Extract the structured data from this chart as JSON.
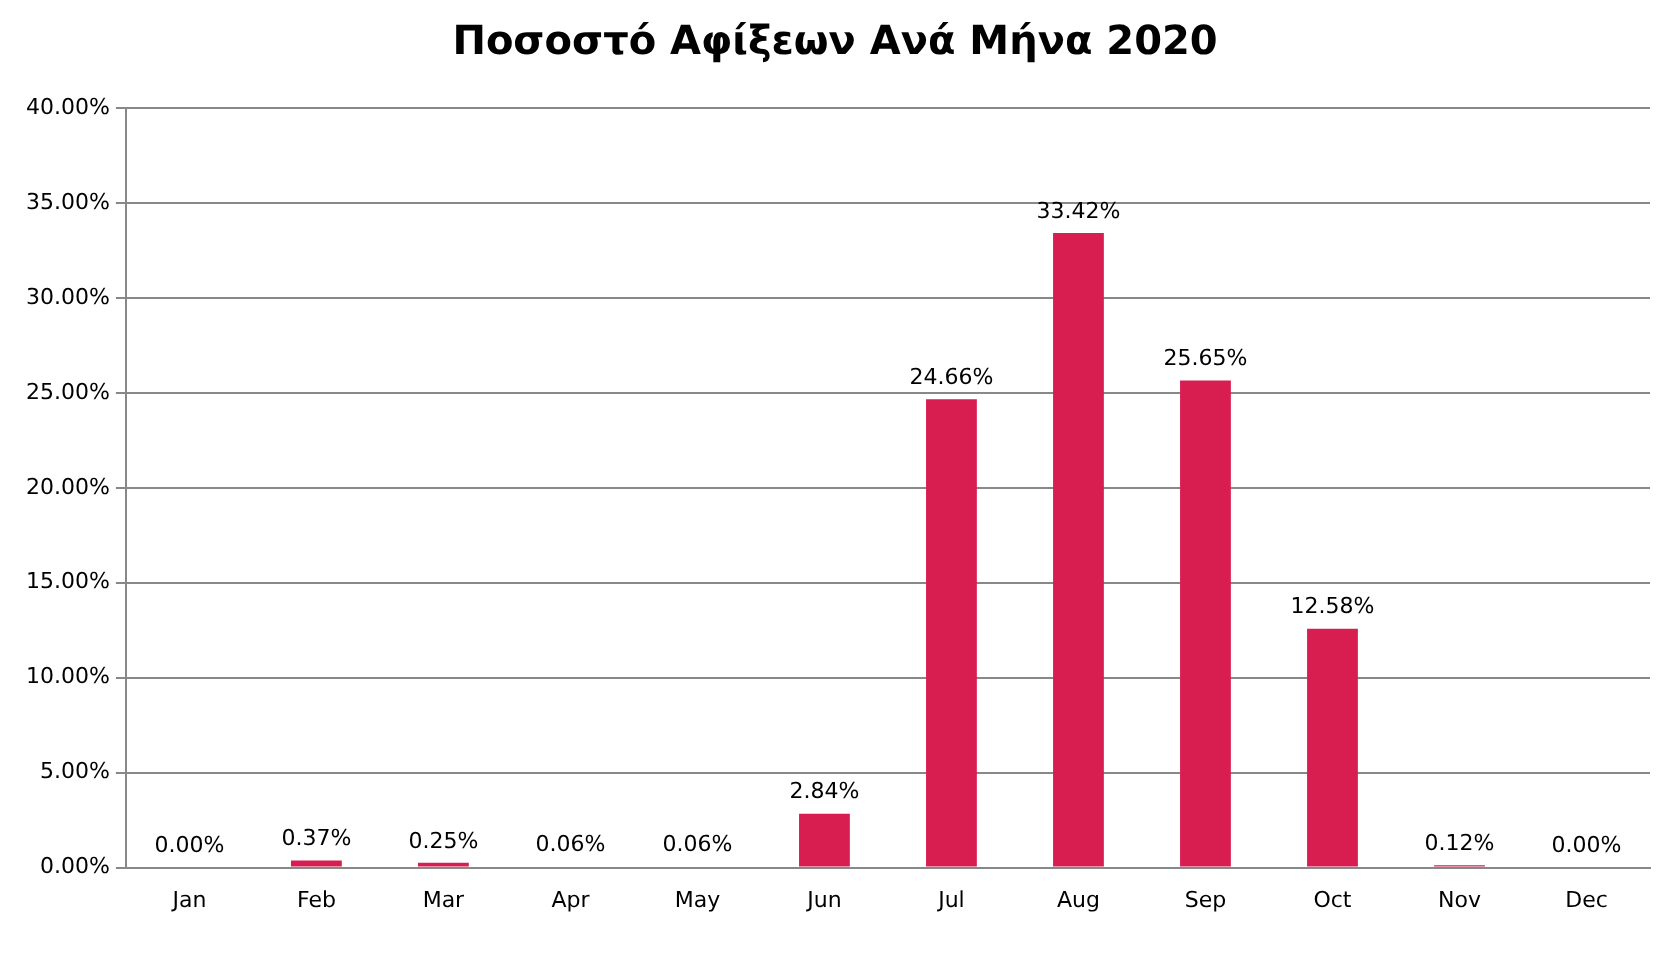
{
  "chart_data": {
    "type": "bar",
    "title": "Ποσοστό Αφίξεων Ανά Μήνα 2020",
    "categories": [
      "Jan",
      "Feb",
      "Mar",
      "Apr",
      "May",
      "Jun",
      "Jul",
      "Aug",
      "Sep",
      "Oct",
      "Nov",
      "Dec"
    ],
    "values": [
      0,
      0.37,
      0.25,
      0.06,
      0.06,
      2.84,
      24.66,
      33.42,
      25.65,
      12.58,
      0.12,
      0
    ],
    "value_labels": [
      "0.00%",
      "0.37%",
      "0.25%",
      "0.06%",
      "0.06%",
      "2.84%",
      "24.66%",
      "33.42%",
      "25.65%",
      "12.58%",
      "0.12%",
      "0.00%"
    ],
    "color": "#d81e50",
    "ylim": [
      0,
      40
    ],
    "yticks": [
      {
        "value": 0,
        "label": "0.00%"
      },
      {
        "value": 5,
        "label": "5.00%"
      },
      {
        "value": 10,
        "label": "10.00%"
      },
      {
        "value": 15,
        "label": "15.00%"
      },
      {
        "value": 20,
        "label": "20.00%"
      },
      {
        "value": 25,
        "label": "25.00%"
      },
      {
        "value": 30,
        "label": "30.00%"
      },
      {
        "value": 35,
        "label": "35.00%"
      },
      {
        "value": 40,
        "label": "40.00%"
      }
    ],
    "grid": "y",
    "legend": false
  }
}
